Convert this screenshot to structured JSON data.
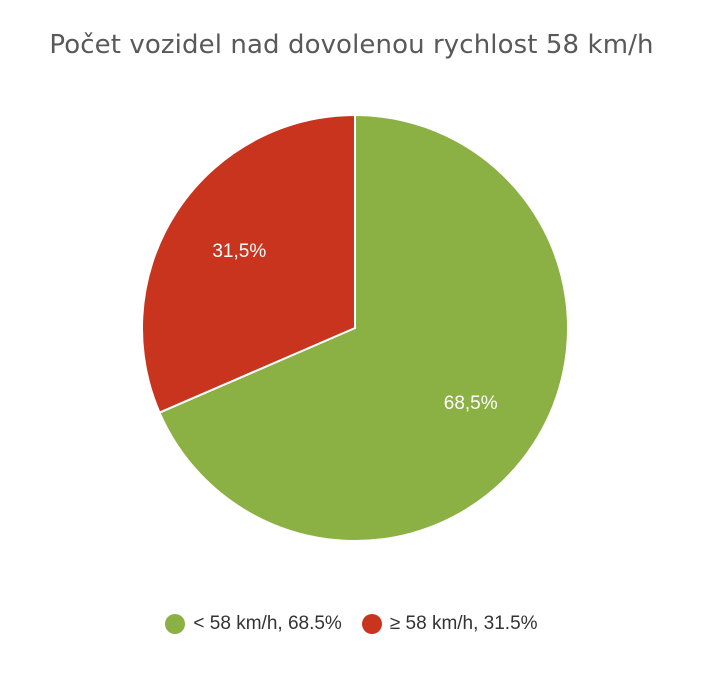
{
  "chart_data": {
    "type": "pie",
    "title": "Počet vozidel nad dovolenou rychlost 58 km/h",
    "slices": [
      {
        "label": "< 58 km/h",
        "value": 68.5,
        "display_label": "68,5%",
        "legend_text": "< 58 km/h, 68.5%",
        "color": "#8bb043"
      },
      {
        "label": "≥ 58 km/h",
        "value": 31.5,
        "display_label": "31,5%",
        "legend_text": "≥ 58 km/h, 31.5%",
        "color": "#c9341f"
      }
    ],
    "legend_position": "bottom"
  }
}
